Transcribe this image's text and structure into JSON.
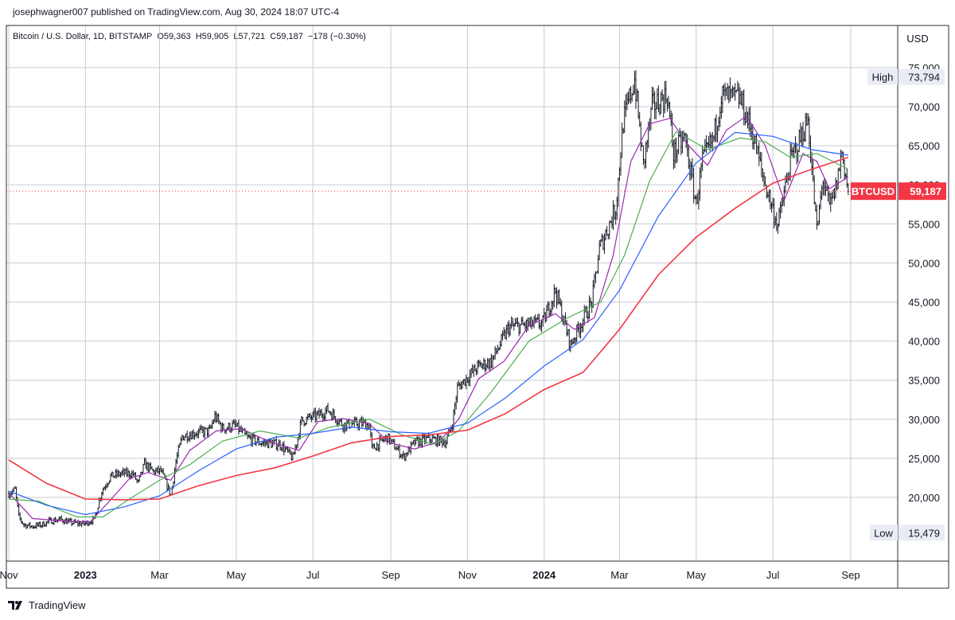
{
  "publish_line": "josephwagner007 published on TradingView.com, Aug 30, 2024 18:07 UTC-4",
  "legend": {
    "symbol": "Bitcoin / U.S. Dollar, 1D, BITSTAMP",
    "open": "O59,363",
    "high": "H59,905",
    "low": "L57,721",
    "close": "C59,187",
    "change": "−178 (−0.30%)"
  },
  "currency": "USD",
  "high_label": {
    "label": "High",
    "value": "73,794"
  },
  "low_label": {
    "label": "Low",
    "value": "15,479"
  },
  "last_price_label": {
    "symbol": "BTCUSD",
    "value": "59,187"
  },
  "footer_brand": "TradingView",
  "colors": {
    "candles": "#131722",
    "ma_purple": "#9c27b0",
    "ma_green": "#4caf50",
    "ma_blue": "#2962ff",
    "ma_red": "#f23645",
    "price_line": "#f23645",
    "grid": "#c9cbd1",
    "tag_bg": "#e9ecf5"
  },
  "chart_data": {
    "type": "candlestick",
    "title": "Bitcoin / U.S. Dollar, 1D, BITSTAMP",
    "ylim": [
      13000,
      78000
    ],
    "y_ticks": [
      20000,
      25000,
      30000,
      35000,
      40000,
      45000,
      50000,
      55000,
      60000,
      65000,
      70000,
      75000
    ],
    "y_tick_labels": [
      "20,000",
      "25,000",
      "30,000",
      "35,000",
      "40,000",
      "45,000",
      "50,000",
      "55,000",
      "60,000",
      "65,000",
      "70,000",
      "75,000"
    ],
    "x_range": [
      "2022-11-01",
      "2024-10-01"
    ],
    "x_ticks": [
      {
        "date": "2022-11-01",
        "label": "Nov"
      },
      {
        "date": "2023-01-01",
        "label": "2023"
      },
      {
        "date": "2023-03-01",
        "label": "Mar"
      },
      {
        "date": "2023-05-01",
        "label": "May"
      },
      {
        "date": "2023-07-01",
        "label": "Jul"
      },
      {
        "date": "2023-09-01",
        "label": "Sep"
      },
      {
        "date": "2023-11-01",
        "label": "Nov"
      },
      {
        "date": "2024-01-01",
        "label": "2024"
      },
      {
        "date": "2024-03-01",
        "label": "Mar"
      },
      {
        "date": "2024-05-01",
        "label": "May"
      },
      {
        "date": "2024-07-01",
        "label": "Jul"
      },
      {
        "date": "2024-09-01",
        "label": "Sep"
      }
    ],
    "price_path": [
      [
        "2022-11-01",
        20500
      ],
      [
        "2022-11-06",
        21000
      ],
      [
        "2022-11-09",
        17500
      ],
      [
        "2022-11-13",
        16500
      ],
      [
        "2022-11-20",
        16300
      ],
      [
        "2022-11-27",
        16500
      ],
      [
        "2022-12-04",
        17000
      ],
      [
        "2022-12-12",
        17200
      ],
      [
        "2022-12-20",
        16800
      ],
      [
        "2022-12-31",
        16600
      ],
      [
        "2023-01-08",
        17200
      ],
      [
        "2023-01-14",
        20800
      ],
      [
        "2023-01-21",
        22700
      ],
      [
        "2023-01-31",
        23100
      ],
      [
        "2023-02-08",
        23000
      ],
      [
        "2023-02-12",
        21800
      ],
      [
        "2023-02-17",
        24300
      ],
      [
        "2023-02-24",
        23300
      ],
      [
        "2023-03-02",
        23400
      ],
      [
        "2023-03-10",
        20300
      ],
      [
        "2023-03-14",
        24600
      ],
      [
        "2023-03-19",
        27800
      ],
      [
        "2023-03-30",
        28300
      ],
      [
        "2023-04-10",
        28500
      ],
      [
        "2023-04-14",
        30400
      ],
      [
        "2023-04-20",
        28800
      ],
      [
        "2023-04-30",
        29200
      ],
      [
        "2023-05-10",
        27600
      ],
      [
        "2023-05-20",
        27000
      ],
      [
        "2023-06-05",
        26800
      ],
      [
        "2023-06-15",
        25000
      ],
      [
        "2023-06-22",
        29800
      ],
      [
        "2023-07-05",
        30500
      ],
      [
        "2023-07-13",
        31200
      ],
      [
        "2023-07-25",
        29300
      ],
      [
        "2023-08-10",
        29500
      ],
      [
        "2023-08-15",
        29200
      ],
      [
        "2023-08-17",
        26200
      ],
      [
        "2023-08-29",
        27700
      ],
      [
        "2023-09-11",
        25200
      ],
      [
        "2023-09-20",
        27000
      ],
      [
        "2023-10-01",
        27500
      ],
      [
        "2023-10-15",
        27100
      ],
      [
        "2023-10-20",
        29500
      ],
      [
        "2023-10-24",
        34000
      ],
      [
        "2023-11-09",
        36700
      ],
      [
        "2023-11-20",
        37400
      ],
      [
        "2023-12-04",
        41800
      ],
      [
        "2023-12-15",
        42000
      ],
      [
        "2023-12-31",
        42300
      ],
      [
        "2024-01-10",
        46500
      ],
      [
        "2024-01-22",
        39500
      ],
      [
        "2024-01-31",
        42500
      ],
      [
        "2024-02-08",
        45000
      ],
      [
        "2024-02-14",
        51800
      ],
      [
        "2024-02-27",
        57000
      ],
      [
        "2024-03-04",
        68000
      ],
      [
        "2024-03-13",
        73500
      ],
      [
        "2024-03-20",
        62500
      ],
      [
        "2024-03-27",
        70000
      ],
      [
        "2024-04-08",
        71500
      ],
      [
        "2024-04-13",
        64000
      ],
      [
        "2024-04-22",
        66000
      ],
      [
        "2024-05-01",
        57500
      ],
      [
        "2024-05-06",
        63000
      ],
      [
        "2024-05-15",
        66000
      ],
      [
        "2024-05-21",
        71400
      ],
      [
        "2024-06-05",
        71000
      ],
      [
        "2024-06-15",
        66500
      ],
      [
        "2024-06-24",
        60500
      ],
      [
        "2024-07-05",
        54800
      ],
      [
        "2024-07-15",
        63000
      ],
      [
        "2024-07-29",
        68300
      ],
      [
        "2024-08-05",
        54000
      ],
      [
        "2024-08-10",
        60800
      ],
      [
        "2024-08-15",
        57000
      ],
      [
        "2024-08-20",
        59500
      ],
      [
        "2024-08-25",
        64200
      ],
      [
        "2024-08-30",
        59187
      ]
    ],
    "moving_averages": [
      {
        "color": "#9c27b0",
        "points": [
          [
            "2022-11-01",
            20600
          ],
          [
            "2022-11-20",
            17300
          ],
          [
            "2022-12-20",
            16900
          ],
          [
            "2023-01-05",
            16900
          ],
          [
            "2023-01-20",
            19500
          ],
          [
            "2023-02-05",
            22400
          ],
          [
            "2023-02-20",
            23200
          ],
          [
            "2023-03-10",
            22200
          ],
          [
            "2023-03-25",
            26000
          ],
          [
            "2023-04-15",
            28500
          ],
          [
            "2023-05-05",
            28800
          ],
          [
            "2023-05-25",
            27300
          ],
          [
            "2023-06-20",
            26000
          ],
          [
            "2023-07-05",
            29700
          ],
          [
            "2023-07-25",
            30100
          ],
          [
            "2023-08-15",
            29400
          ],
          [
            "2023-08-31",
            27000
          ],
          [
            "2023-09-20",
            26200
          ],
          [
            "2023-10-10",
            27200
          ],
          [
            "2023-10-25",
            30000
          ],
          [
            "2023-11-10",
            35200
          ],
          [
            "2023-11-30",
            37400
          ],
          [
            "2023-12-20",
            42000
          ],
          [
            "2024-01-10",
            43500
          ],
          [
            "2024-01-25",
            41500
          ],
          [
            "2024-02-10",
            43000
          ],
          [
            "2024-02-25",
            51000
          ],
          [
            "2024-03-10",
            63000
          ],
          [
            "2024-03-25",
            67800
          ],
          [
            "2024-04-10",
            68500
          ],
          [
            "2024-04-25",
            65000
          ],
          [
            "2024-05-10",
            62500
          ],
          [
            "2024-05-25",
            67000
          ],
          [
            "2024-06-10",
            68800
          ],
          [
            "2024-06-25",
            65000
          ],
          [
            "2024-07-10",
            58000
          ],
          [
            "2024-07-25",
            64000
          ],
          [
            "2024-08-05",
            63000
          ],
          [
            "2024-08-15",
            59500
          ],
          [
            "2024-08-30",
            61000
          ]
        ]
      },
      {
        "color": "#4caf50",
        "points": [
          [
            "2022-11-01",
            19800
          ],
          [
            "2022-11-25",
            19500
          ],
          [
            "2022-12-25",
            17500
          ],
          [
            "2023-01-15",
            17500
          ],
          [
            "2023-02-05",
            19800
          ],
          [
            "2023-03-01",
            22200
          ],
          [
            "2023-03-25",
            24200
          ],
          [
            "2023-04-20",
            27200
          ],
          [
            "2023-05-20",
            28500
          ],
          [
            "2023-06-20",
            27600
          ],
          [
            "2023-07-15",
            29000
          ],
          [
            "2023-08-15",
            30000
          ],
          [
            "2023-09-10",
            28000
          ],
          [
            "2023-10-05",
            26800
          ],
          [
            "2023-10-25",
            28500
          ],
          [
            "2023-11-20",
            33500
          ],
          [
            "2023-12-20",
            40000
          ],
          [
            "2024-01-20",
            43000
          ],
          [
            "2024-02-15",
            45000
          ],
          [
            "2024-03-05",
            51000
          ],
          [
            "2024-03-25",
            60500
          ],
          [
            "2024-04-15",
            66800
          ],
          [
            "2024-05-10",
            64500
          ],
          [
            "2024-06-05",
            66000
          ],
          [
            "2024-06-25",
            65500
          ],
          [
            "2024-07-15",
            63500
          ],
          [
            "2024-08-05",
            64000
          ],
          [
            "2024-08-30",
            62000
          ]
        ]
      },
      {
        "color": "#2962ff",
        "points": [
          [
            "2022-11-01",
            20800
          ],
          [
            "2022-12-01",
            19000
          ],
          [
            "2023-01-01",
            17800
          ],
          [
            "2023-02-01",
            18800
          ],
          [
            "2023-03-01",
            20200
          ],
          [
            "2023-04-01",
            23400
          ],
          [
            "2023-05-01",
            26200
          ],
          [
            "2023-06-01",
            27700
          ],
          [
            "2023-07-01",
            28200
          ],
          [
            "2023-08-01",
            29000
          ],
          [
            "2023-09-01",
            28400
          ],
          [
            "2023-10-01",
            28200
          ],
          [
            "2023-11-01",
            29500
          ],
          [
            "2023-12-01",
            32700
          ],
          [
            "2024-01-01",
            36800
          ],
          [
            "2024-02-01",
            40200
          ],
          [
            "2024-03-01",
            46500
          ],
          [
            "2024-04-01",
            56000
          ],
          [
            "2024-05-01",
            62800
          ],
          [
            "2024-06-01",
            66700
          ],
          [
            "2024-07-01",
            66200
          ],
          [
            "2024-08-01",
            64500
          ],
          [
            "2024-08-30",
            63800
          ]
        ]
      },
      {
        "color": "#f23645",
        "points": [
          [
            "2022-11-01",
            24800
          ],
          [
            "2022-12-01",
            21800
          ],
          [
            "2023-01-01",
            19800
          ],
          [
            "2023-02-01",
            19700
          ],
          [
            "2023-03-01",
            19800
          ],
          [
            "2023-04-01",
            21500
          ],
          [
            "2023-05-01",
            22800
          ],
          [
            "2023-06-01",
            23800
          ],
          [
            "2023-07-01",
            25300
          ],
          [
            "2023-08-01",
            27000
          ],
          [
            "2023-09-01",
            27800
          ],
          [
            "2023-10-01",
            28000
          ],
          [
            "2023-11-01",
            28600
          ],
          [
            "2023-12-01",
            30700
          ],
          [
            "2024-01-01",
            33800
          ],
          [
            "2024-02-01",
            36000
          ],
          [
            "2024-03-01",
            41500
          ],
          [
            "2024-04-01",
            48500
          ],
          [
            "2024-05-01",
            53300
          ],
          [
            "2024-06-01",
            57000
          ],
          [
            "2024-07-01",
            60200
          ],
          [
            "2024-08-01",
            62000
          ],
          [
            "2024-08-30",
            63500
          ]
        ]
      }
    ],
    "last_price": 59187,
    "high_value": 73794,
    "low_value": 15479
  }
}
